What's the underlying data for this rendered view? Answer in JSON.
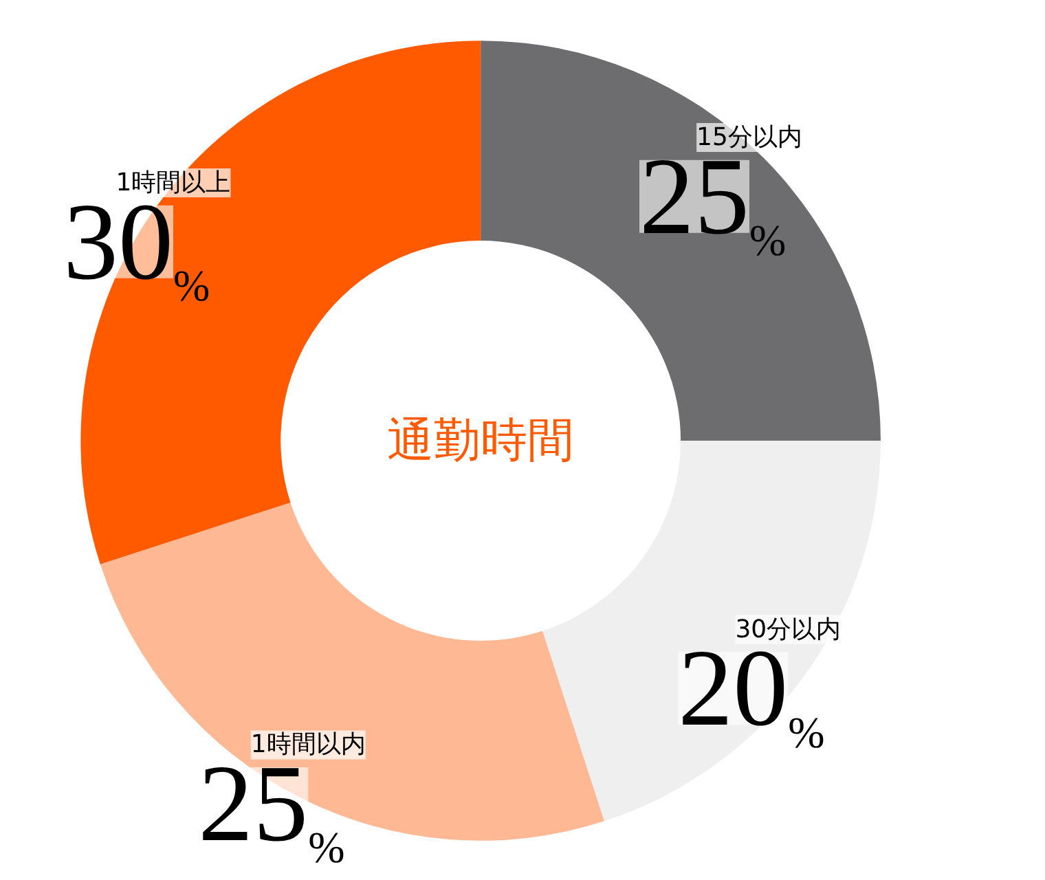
{
  "chart_data": {
    "type": "donut",
    "title": "通勤時間",
    "categories": [
      "15分以内",
      "30分以内",
      "1時間以内",
      "1時間以上"
    ],
    "values": [
      25,
      20,
      25,
      30
    ],
    "colors": [
      "#6d6d6f",
      "#efefef",
      "#ffb894",
      "#ff5a00"
    ],
    "value_labels": [
      "25%",
      "20%",
      "25%",
      "30%"
    ]
  }
}
